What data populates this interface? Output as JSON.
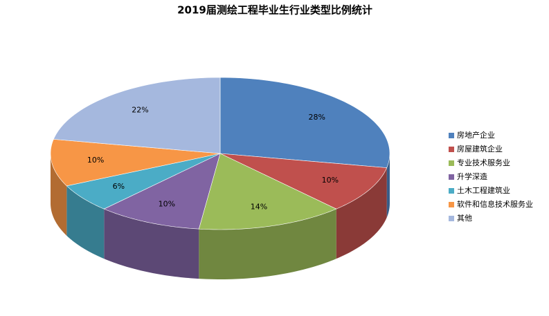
{
  "chart_data": {
    "type": "pie",
    "title": "2019届测绘工程毕业生行业类型比例统计",
    "categories": [
      "房地产企业",
      "房屋建筑企业",
      "专业技术服务业",
      "升学深造",
      "土木工程建筑业",
      "软件和信息技术服务业",
      "其他"
    ],
    "values": [
      28,
      10,
      14,
      10,
      6,
      10,
      22
    ],
    "value_labels": [
      "28%",
      "10%",
      "14%",
      "10%",
      "6%",
      "10%",
      "22%"
    ],
    "colors": [
      "#4f81bd",
      "#c0504d",
      "#9bbb59",
      "#8064a2",
      "#4bacc6",
      "#f79646",
      "#a5b8de"
    ],
    "legend": "right"
  }
}
